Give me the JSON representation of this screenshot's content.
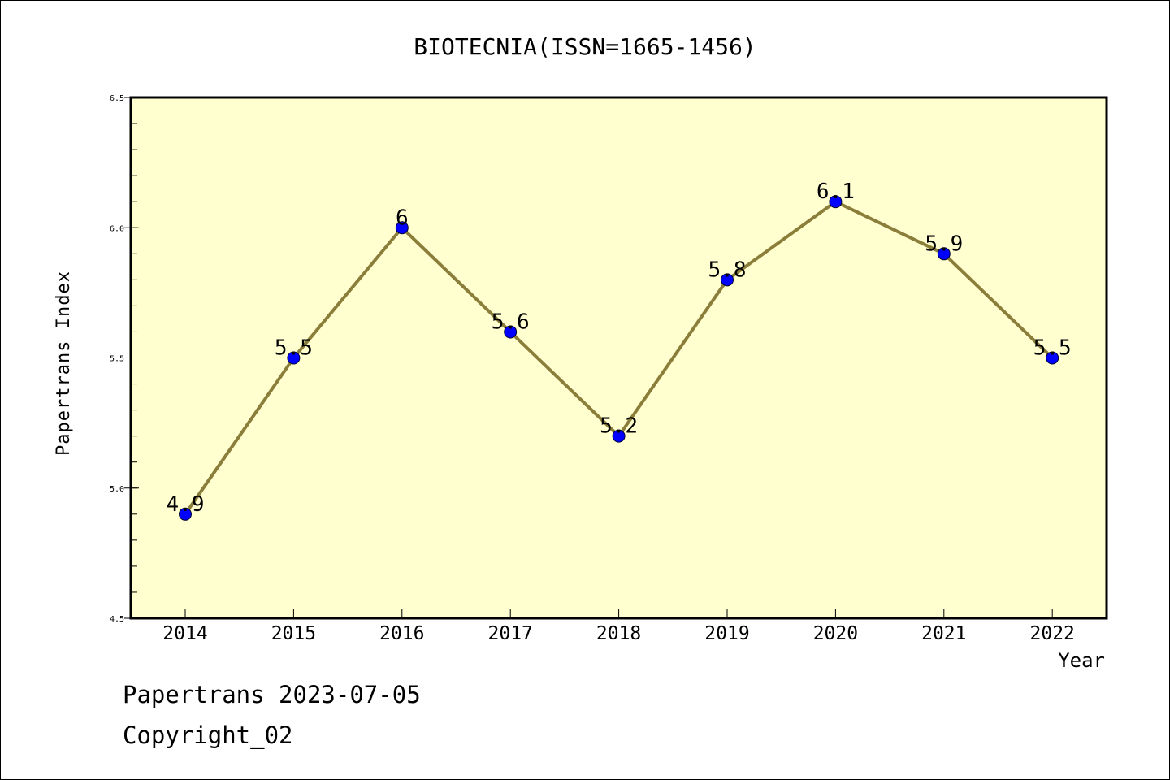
{
  "chart_data": {
    "type": "line",
    "title": "BIOTECNIA(ISSN=1665-1456)",
    "xlabel": "Year",
    "ylabel": "Papertrans Index",
    "categories": [
      "2014",
      "2015",
      "2016",
      "2017",
      "2018",
      "2019",
      "2020",
      "2021",
      "2022"
    ],
    "values": [
      4.9,
      5.5,
      6.0,
      5.6,
      5.2,
      5.8,
      6.1,
      5.9,
      5.5
    ],
    "data_labels": [
      "4.9",
      "5.5",
      "6",
      "5.6",
      "5.2",
      "5.8",
      "6.1",
      "5.9",
      "5.5"
    ],
    "ylim": [
      4.5,
      6.5
    ],
    "yticks": [
      "4.5",
      "5.0",
      "5.5",
      "6.0",
      "6.5"
    ],
    "grid": false,
    "colors": {
      "plot_background": "#ffffd0",
      "line": "#8b7d3a",
      "marker": "#0000ff"
    }
  },
  "footer": {
    "line1": "Papertrans 2023-07-05",
    "line2": "Copyright_02"
  }
}
